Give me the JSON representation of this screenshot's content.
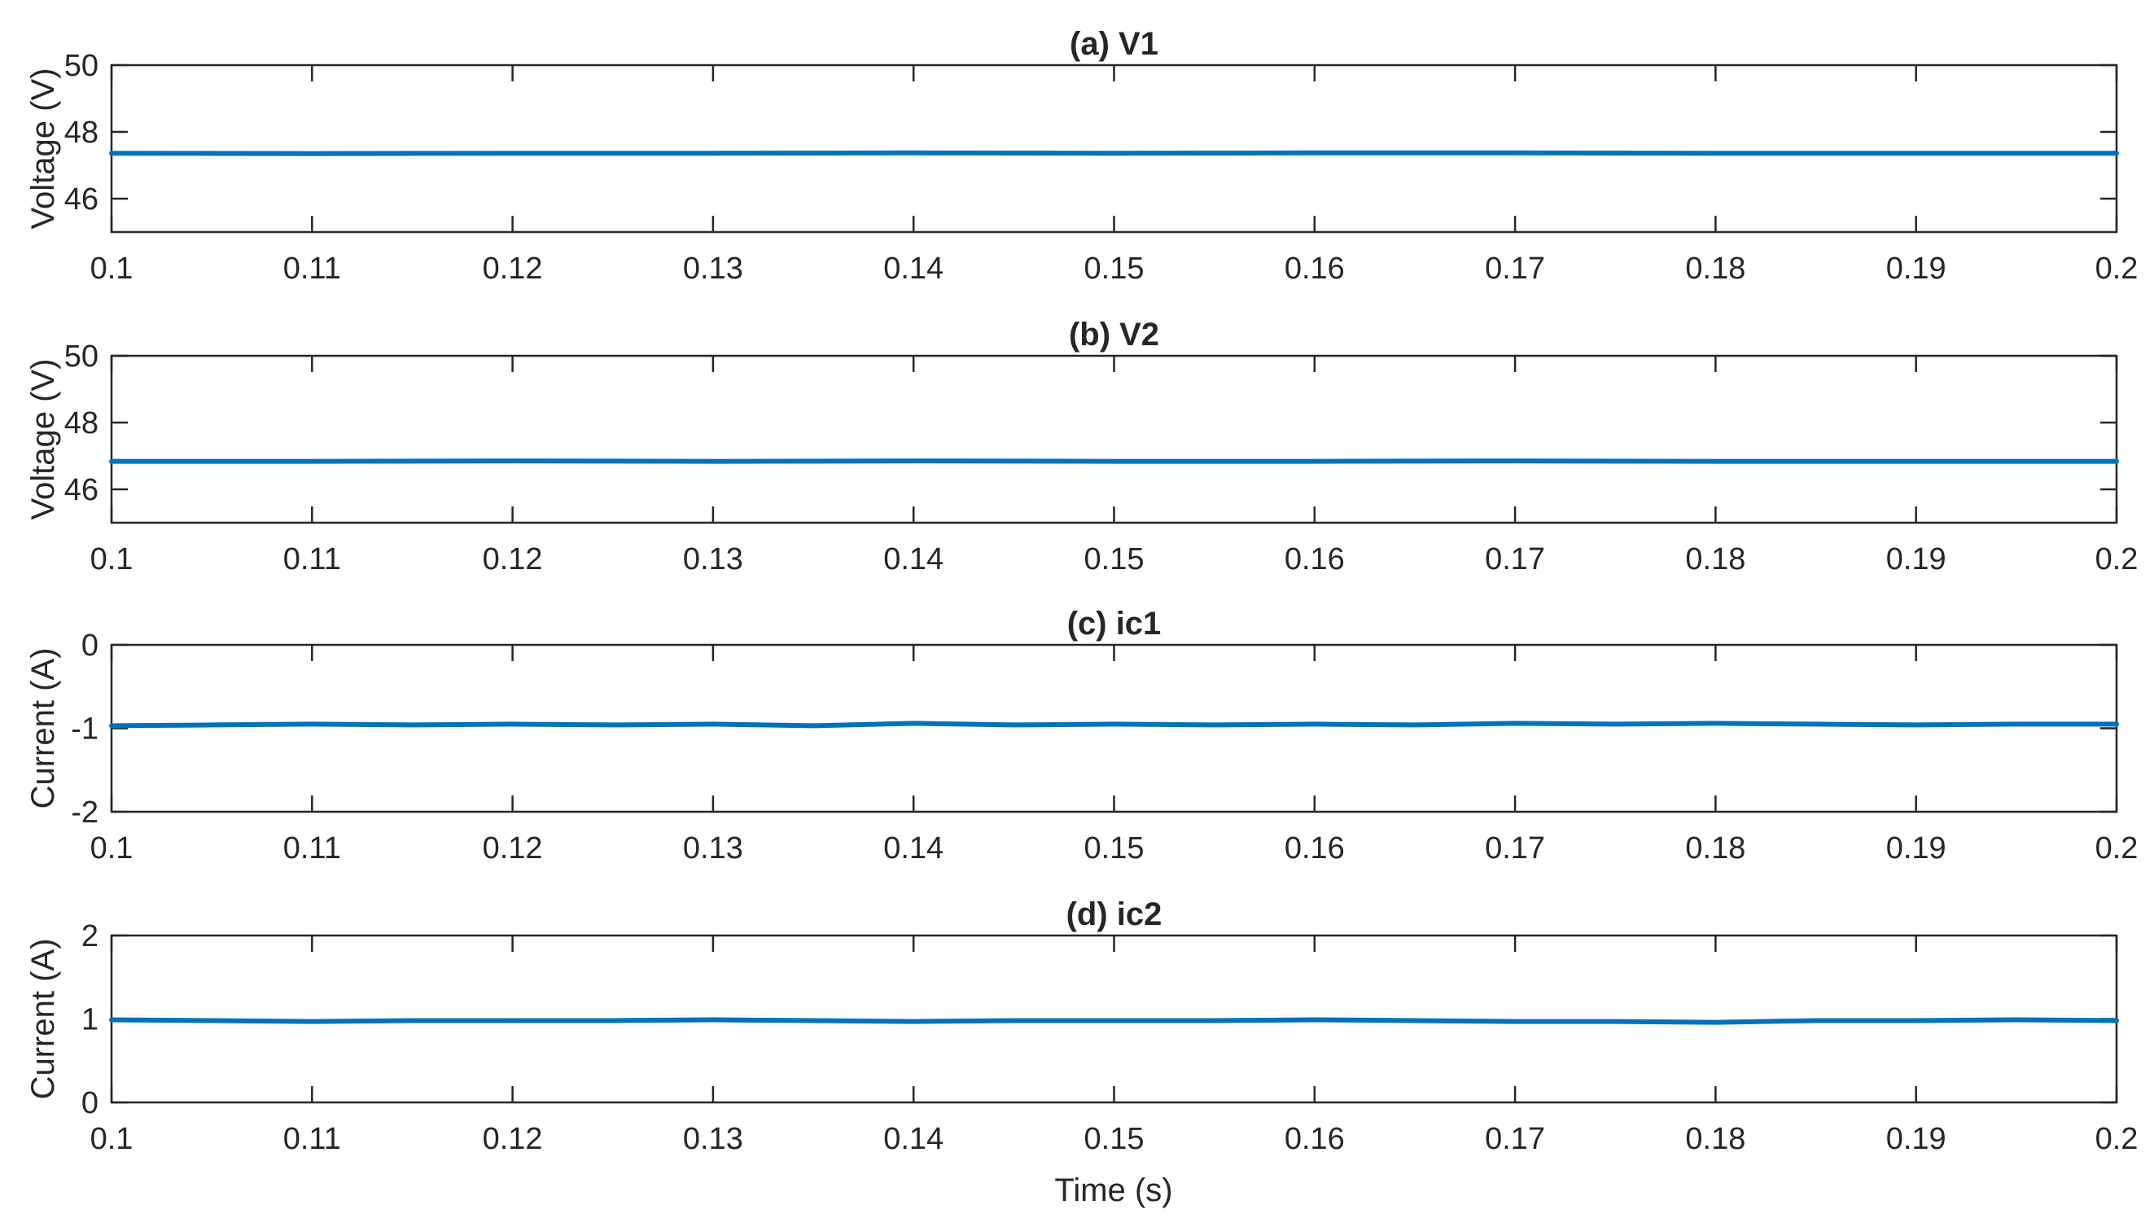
{
  "figure": {
    "shared_xlabel": "Time (s)",
    "series_color": "#0072BD"
  },
  "chart_data": [
    {
      "type": "line",
      "title": "(a) V1",
      "ylabel": "Voltage (V)",
      "xlabel": "",
      "xlim": [
        0.1,
        0.2
      ],
      "ylim": [
        45,
        50
      ],
      "xticks": [
        "0.1",
        "0.11",
        "0.12",
        "0.13",
        "0.14",
        "0.15",
        "0.16",
        "0.17",
        "0.18",
        "0.19",
        "0.2"
      ],
      "yticks": [
        "46",
        "48",
        "50"
      ],
      "grid": false,
      "series": [
        {
          "x": [
            0.1,
            0.11,
            0.12,
            0.13,
            0.14,
            0.15,
            0.16,
            0.17,
            0.18,
            0.19,
            0.2
          ],
          "y": [
            47.36,
            47.35,
            47.36,
            47.36,
            47.37,
            47.36,
            47.37,
            47.37,
            47.36,
            47.36,
            47.36
          ]
        }
      ]
    },
    {
      "type": "line",
      "title": "(b) V2",
      "ylabel": "Voltage (V)",
      "xlabel": "",
      "xlim": [
        0.1,
        0.2
      ],
      "ylim": [
        45,
        50
      ],
      "xticks": [
        "0.1",
        "0.11",
        "0.12",
        "0.13",
        "0.14",
        "0.15",
        "0.16",
        "0.17",
        "0.18",
        "0.19",
        "0.2"
      ],
      "yticks": [
        "46",
        "48",
        "50"
      ],
      "grid": false,
      "series": [
        {
          "x": [
            0.1,
            0.11,
            0.12,
            0.13,
            0.14,
            0.15,
            0.16,
            0.17,
            0.18,
            0.19,
            0.2
          ],
          "y": [
            46.84,
            46.84,
            46.85,
            46.84,
            46.85,
            46.84,
            46.84,
            46.85,
            46.84,
            46.84,
            46.84
          ]
        }
      ]
    },
    {
      "type": "line",
      "title": "(c) ic1",
      "ylabel": "Current (A)",
      "xlabel": "",
      "xlim": [
        0.1,
        0.2
      ],
      "ylim": [
        -2,
        0
      ],
      "xticks": [
        "0.1",
        "0.11",
        "0.12",
        "0.13",
        "0.14",
        "0.15",
        "0.16",
        "0.17",
        "0.18",
        "0.19",
        "0.2"
      ],
      "yticks": [
        "-2",
        "-1",
        "0"
      ],
      "grid": false,
      "series": [
        {
          "x": [
            0.1,
            0.105,
            0.11,
            0.115,
            0.12,
            0.125,
            0.13,
            0.135,
            0.14,
            0.145,
            0.15,
            0.155,
            0.16,
            0.165,
            0.17,
            0.175,
            0.18,
            0.185,
            0.19,
            0.195,
            0.2
          ],
          "y": [
            -0.97,
            -0.96,
            -0.95,
            -0.96,
            -0.95,
            -0.96,
            -0.95,
            -0.97,
            -0.94,
            -0.96,
            -0.95,
            -0.96,
            -0.95,
            -0.96,
            -0.94,
            -0.95,
            -0.94,
            -0.95,
            -0.96,
            -0.95,
            -0.95
          ]
        }
      ]
    },
    {
      "type": "line",
      "title": "(d) ic2",
      "ylabel": "Current (A)",
      "xlabel": "Time (s)",
      "xlim": [
        0.1,
        0.2
      ],
      "ylim": [
        0,
        2
      ],
      "xticks": [
        "0.1",
        "0.11",
        "0.12",
        "0.13",
        "0.14",
        "0.15",
        "0.16",
        "0.17",
        "0.18",
        "0.19",
        "0.2"
      ],
      "yticks": [
        "0",
        "1",
        "2"
      ],
      "grid": false,
      "series": [
        {
          "x": [
            0.1,
            0.105,
            0.11,
            0.115,
            0.12,
            0.125,
            0.13,
            0.135,
            0.14,
            0.145,
            0.15,
            0.155,
            0.16,
            0.165,
            0.17,
            0.175,
            0.18,
            0.185,
            0.19,
            0.195,
            0.2
          ],
          "y": [
            0.99,
            0.98,
            0.97,
            0.98,
            0.98,
            0.98,
            0.99,
            0.98,
            0.97,
            0.98,
            0.98,
            0.98,
            0.99,
            0.98,
            0.97,
            0.97,
            0.96,
            0.98,
            0.98,
            0.99,
            0.98
          ]
        }
      ]
    }
  ]
}
